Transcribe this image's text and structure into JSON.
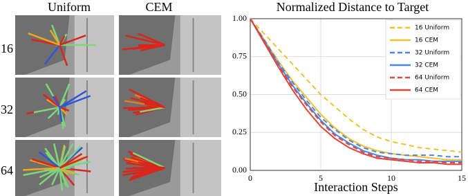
{
  "panel_grid": {
    "columns": [
      "Uniform",
      "CEM"
    ],
    "rows": [
      "16",
      "32",
      "64"
    ]
  },
  "chart_data": {
    "type": "line",
    "title": "Normalized Distance to Target",
    "x_label": "Interaction Steps",
    "x": [
      0,
      1,
      2,
      3,
      4,
      5,
      6,
      7,
      8,
      9,
      10,
      11,
      12,
      13,
      14,
      15
    ],
    "xlim": [
      0,
      15
    ],
    "xticks": [
      0,
      5,
      10,
      15
    ],
    "ylim": [
      0,
      1
    ],
    "yticks": [
      {
        "value": 0,
        "label": "0.00"
      },
      {
        "value": 0.25,
        "label": "0.25"
      },
      {
        "value": 0.5,
        "label": "0.50"
      },
      {
        "value": 0.75,
        "label": "0.75"
      },
      {
        "value": 1,
        "label": "1.00"
      }
    ],
    "grid": true,
    "legend": "upper right",
    "series": [
      {
        "name": "16 Uniform",
        "color": "#f2c12e",
        "dashed": true,
        "values": [
          1.0,
          0.9,
          0.8,
          0.7,
          0.6,
          0.5,
          0.42,
          0.34,
          0.27,
          0.22,
          0.19,
          0.17,
          0.15,
          0.14,
          0.13,
          0.12
        ]
      },
      {
        "name": "16 CEM",
        "color": "#f2c12e",
        "dashed": false,
        "values": [
          1.0,
          0.86,
          0.72,
          0.59,
          0.48,
          0.37,
          0.28,
          0.21,
          0.16,
          0.13,
          0.11,
          0.1,
          0.09,
          0.08,
          0.07,
          0.07
        ]
      },
      {
        "name": "32 Uniform",
        "color": "#4a86e8",
        "dashed": true,
        "values": [
          1.0,
          0.86,
          0.71,
          0.58,
          0.46,
          0.35,
          0.27,
          0.2,
          0.15,
          0.12,
          0.11,
          0.1,
          0.1,
          0.1,
          0.09,
          0.09
        ]
      },
      {
        "name": "32 CEM",
        "color": "#4a86e8",
        "dashed": false,
        "values": [
          1.0,
          0.85,
          0.7,
          0.56,
          0.44,
          0.33,
          0.24,
          0.18,
          0.13,
          0.1,
          0.08,
          0.07,
          0.07,
          0.06,
          0.06,
          0.06
        ]
      },
      {
        "name": "64 Uniform",
        "color": "#e0443a",
        "dashed": true,
        "values": [
          1.0,
          0.85,
          0.69,
          0.55,
          0.43,
          0.32,
          0.23,
          0.17,
          0.12,
          0.09,
          0.08,
          0.07,
          0.06,
          0.06,
          0.05,
          0.05
        ]
      },
      {
        "name": "64 CEM",
        "color": "#e0443a",
        "dashed": false,
        "values": [
          1.0,
          0.84,
          0.68,
          0.53,
          0.4,
          0.29,
          0.21,
          0.15,
          0.11,
          0.08,
          0.07,
          0.06,
          0.05,
          0.05,
          0.04,
          0.04
        ]
      }
    ]
  }
}
